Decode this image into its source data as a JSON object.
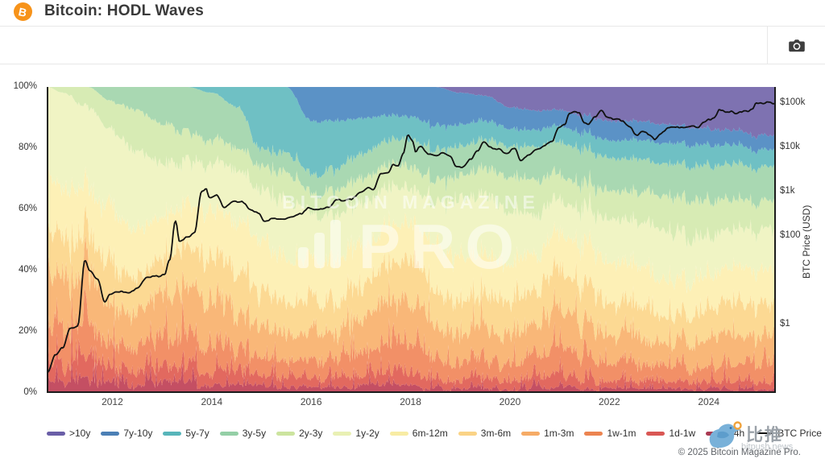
{
  "header": {
    "title": "Bitcoin: HODL Waves",
    "icon": "bitcoin-icon",
    "icon_glyph": "B"
  },
  "toolbar": {
    "buttons": [
      {
        "icon": "camera-icon"
      }
    ]
  },
  "watermark": {
    "line1": "BITCOIN MAGAZINE",
    "line2": "PRO"
  },
  "footer": {
    "copyright": "© 2025 Bitcoin Magazine Pro.",
    "bitpush_name": "比推",
    "bitpush_domain": "bitpush.news",
    "bitpush_icon": "twitter-bird-icon"
  },
  "chart_data": {
    "type": "area",
    "stacked": true,
    "title": "Bitcoin: HODL Waves",
    "grid": false,
    "legend_position": "bottom",
    "x_domain": [
      2010.68,
      2025.35
    ],
    "x_ticks": [
      "2012",
      "2014",
      "2016",
      "2018",
      "2020",
      "2022",
      "2024"
    ],
    "x_tick_values": [
      2012,
      2014,
      2016,
      2018,
      2020,
      2022,
      2024
    ],
    "percent_axis": {
      "ticks": [
        "100%",
        "80%",
        "60%",
        "40%",
        "20%",
        "0%"
      ],
      "values": [
        100,
        80,
        60,
        40,
        20,
        0
      ]
    },
    "price_axis": {
      "title": "BTC Price (USD)",
      "scale": "log",
      "domain": [
        0.0285,
        231000
      ],
      "ticks": [
        {
          "label": "$100k",
          "value": 100000
        },
        {
          "label": "$10k",
          "value": 10000
        },
        {
          "label": "$1k",
          "value": 1000
        },
        {
          "label": "$100",
          "value": 100
        },
        {
          "label": "$1",
          "value": 1
        }
      ]
    },
    "sample_years": [
      2010.7,
      2011.0,
      2011.5,
      2012.0,
      2012.5,
      2013.0,
      2013.5,
      2014.0,
      2014.5,
      2015.0,
      2015.5,
      2016.0,
      2016.5,
      2017.0,
      2017.5,
      2018.0,
      2018.5,
      2019.0,
      2019.5,
      2020.0,
      2020.5,
      2021.0,
      2021.5,
      2022.0,
      2022.5,
      2023.0,
      2023.5,
      2024.0,
      2024.5,
      2025.0,
      2025.35
    ],
    "bands": [
      {
        "name": "24h",
        "fill": "#c44f63",
        "swatch": "#a93a52",
        "values": [
          5,
          4,
          4,
          3,
          2.5,
          3.5,
          3.5,
          2.5,
          2,
          2,
          1.8,
          1.5,
          1.6,
          2,
          2.5,
          2,
          1.5,
          1.2,
          1.5,
          1.2,
          1.5,
          1.8,
          1.5,
          1.2,
          1.2,
          1,
          1,
          1.2,
          1.2,
          1.2,
          1
        ]
      },
      {
        "name": "1d-1w",
        "fill": "#e2695f",
        "swatch": "#d95754",
        "values": [
          7,
          6,
          6,
          4.5,
          4,
          4.5,
          5,
          4,
          3.5,
          3,
          2.8,
          2.5,
          2.6,
          3.2,
          4,
          4,
          3,
          2.6,
          3,
          2.5,
          3,
          3.6,
          3.2,
          2.6,
          2.5,
          2,
          2,
          2.4,
          2.5,
          2.5,
          2.3
        ]
      },
      {
        "name": "1w-1m",
        "fill": "#f29067",
        "swatch": "#ec8450",
        "values": [
          12,
          11,
          11,
          7.5,
          6.5,
          9,
          9.5,
          8.5,
          6.5,
          6,
          5.5,
          5.5,
          5.5,
          6.5,
          8,
          9,
          6.5,
          5.2,
          6,
          5,
          6.5,
          8,
          7,
          5.5,
          5,
          4.5,
          4.5,
          5,
          5.5,
          5.5,
          5.2
        ]
      },
      {
        "name": "1m-3m",
        "fill": "#f9b778",
        "swatch": "#f6ab66",
        "values": [
          16,
          15,
          15,
          12,
          11,
          13,
          14,
          14,
          11,
          10,
          9,
          10,
          9,
          10.5,
          12,
          14,
          10,
          9,
          9.5,
          8.5,
          10,
          12.5,
          11,
          9,
          8.5,
          7,
          7.5,
          8.5,
          9,
          8.5,
          8.5
        ]
      },
      {
        "name": "3m-6m",
        "fill": "#fcd993",
        "swatch": "#fad386",
        "values": [
          12,
          13,
          13,
          13,
          12,
          12,
          13,
          14,
          13,
          11,
          10,
          10.5,
          10,
          11,
          12,
          13,
          12,
          10.5,
          10,
          10,
          11,
          12,
          11.5,
          10.5,
          10,
          9,
          9,
          9.5,
          10,
          10,
          10
        ]
      },
      {
        "name": "6m-12m",
        "fill": "#fdf0b6",
        "swatch": "#f8eca4",
        "values": [
          18,
          17,
          16,
          18,
          16,
          14,
          14,
          16,
          17,
          16,
          14,
          13,
          13,
          13,
          13,
          13,
          15,
          15,
          13,
          12,
          12,
          12,
          12.5,
          13,
          13,
          12,
          11,
          10.5,
          11,
          11.5,
          11.5
        ]
      },
      {
        "name": "1y-2y",
        "fill": "#f0f4c4",
        "swatch": "#e9f0b4",
        "values": [
          30,
          32,
          28,
          27,
          26,
          18,
          15,
          15,
          18,
          17,
          19,
          14.5,
          15,
          14,
          13,
          11.5,
          13.5,
          18,
          20,
          17.5,
          13.5,
          11,
          12,
          13.7,
          14.3,
          16.5,
          15,
          13,
          12,
          12.5,
          13
        ]
      },
      {
        "name": "2y-3y",
        "fill": "#d7ebb4",
        "swatch": "#cce49f",
        "values": [
          0,
          2,
          7,
          10,
          14,
          13.5,
          10,
          8,
          8,
          8,
          9.4,
          6.5,
          8.5,
          8.5,
          8,
          7,
          7.5,
          8,
          9,
          12,
          11.5,
          8.6,
          8.3,
          9.5,
          10,
          11.5,
          12,
          11.9,
          10.3,
          9.3,
          9.5
        ]
      },
      {
        "name": "3y-5y",
        "fill": "#a9d8b2",
        "swatch": "#94cfa6",
        "values": [
          0,
          0,
          0,
          5,
          8,
          12.5,
          16,
          16,
          14,
          6,
          6.5,
          6.5,
          7.3,
          8.3,
          8.5,
          9,
          10,
          10,
          10,
          10.5,
          11,
          11.5,
          11.5,
          11,
          11,
          10.5,
          11.3,
          11.5,
          12,
          11.5,
          11.5
        ]
      },
      {
        "name": "5y-7y",
        "fill": "#6fc0c4",
        "swatch": "#57b5ba",
        "values": [
          0,
          0,
          0,
          0,
          0,
          0,
          0,
          2,
          7,
          21,
          22,
          18,
          16,
          12,
          9,
          7.5,
          8,
          7.5,
          6.5,
          6,
          5.5,
          5.5,
          5.5,
          6,
          6.5,
          7,
          7,
          7,
          6.5,
          6,
          5.7
        ]
      },
      {
        "name": "7y-10y",
        "fill": "#5b92c6",
        "swatch": "#4b7fb5",
        "values": [
          0,
          0,
          0,
          0,
          0,
          0,
          0,
          0,
          0,
          0,
          0,
          11.5,
          11.5,
          11,
          10,
          10,
          13,
          11,
          8.5,
          7.3,
          6.5,
          5.5,
          6,
          6.5,
          6.5,
          6.5,
          6.2,
          5.5,
          5,
          5,
          4.8
        ]
      },
      {
        "name": ">10y",
        "fill": "#7e72b1",
        "swatch": "#6a5ea7",
        "values": [
          0,
          0,
          0,
          0,
          0,
          0,
          0,
          0,
          0,
          0,
          0,
          0,
          0,
          0,
          0,
          0,
          0,
          2,
          3,
          7,
          8,
          8,
          10,
          11.5,
          11.5,
          12.5,
          13.5,
          14,
          15,
          16.5,
          17
        ]
      }
    ],
    "btc_price": {
      "name": "BTC Price",
      "color": "#111111",
      "points": [
        [
          2010.7,
          0.08
        ],
        [
          2010.85,
          0.2
        ],
        [
          2011.0,
          0.3
        ],
        [
          2011.15,
          0.8
        ],
        [
          2011.3,
          0.9
        ],
        [
          2011.45,
          29
        ],
        [
          2011.55,
          17
        ],
        [
          2011.7,
          11
        ],
        [
          2011.85,
          3
        ],
        [
          2011.95,
          4.6
        ],
        [
          2012.1,
          5.4
        ],
        [
          2012.3,
          5
        ],
        [
          2012.5,
          6.5
        ],
        [
          2012.7,
          11
        ],
        [
          2012.9,
          12.5
        ],
        [
          2013.05,
          14
        ],
        [
          2013.15,
          30
        ],
        [
          2013.27,
          230
        ],
        [
          2013.35,
          77
        ],
        [
          2013.5,
          95
        ],
        [
          2013.65,
          120
        ],
        [
          2013.8,
          1000
        ],
        [
          2013.88,
          1150
        ],
        [
          2013.95,
          730
        ],
        [
          2014.1,
          820
        ],
        [
          2014.25,
          450
        ],
        [
          2014.45,
          590
        ],
        [
          2014.6,
          580
        ],
        [
          2014.8,
          360
        ],
        [
          2014.95,
          320
        ],
        [
          2015.05,
          210
        ],
        [
          2015.25,
          245
        ],
        [
          2015.45,
          235
        ],
        [
          2015.6,
          260
        ],
        [
          2015.8,
          310
        ],
        [
          2015.95,
          430
        ],
        [
          2016.15,
          415
        ],
        [
          2016.35,
          450
        ],
        [
          2016.5,
          670
        ],
        [
          2016.65,
          610
        ],
        [
          2016.8,
          700
        ],
        [
          2017.0,
          980
        ],
        [
          2017.15,
          1180
        ],
        [
          2017.25,
          1050
        ],
        [
          2017.4,
          2400
        ],
        [
          2017.55,
          2700
        ],
        [
          2017.65,
          4300
        ],
        [
          2017.75,
          3900
        ],
        [
          2017.85,
          7500
        ],
        [
          2017.95,
          19000
        ],
        [
          2018.05,
          13500
        ],
        [
          2018.1,
          8200
        ],
        [
          2018.2,
          11000
        ],
        [
          2018.35,
          7000
        ],
        [
          2018.5,
          6400
        ],
        [
          2018.65,
          7300
        ],
        [
          2018.8,
          6300
        ],
        [
          2018.92,
          3900
        ],
        [
          2019.05,
          3600
        ],
        [
          2019.2,
          5300
        ],
        [
          2019.35,
          8500
        ],
        [
          2019.48,
          12800
        ],
        [
          2019.6,
          10300
        ],
        [
          2019.75,
          9500
        ],
        [
          2019.95,
          7200
        ],
        [
          2020.1,
          9500
        ],
        [
          2020.22,
          5300
        ],
        [
          2020.35,
          6800
        ],
        [
          2020.55,
          9400
        ],
        [
          2020.7,
          11500
        ],
        [
          2020.85,
          13800
        ],
        [
          2020.98,
          29000
        ],
        [
          2021.1,
          33000
        ],
        [
          2021.2,
          55000
        ],
        [
          2021.3,
          61000
        ],
        [
          2021.38,
          58000
        ],
        [
          2021.5,
          35000
        ],
        [
          2021.58,
          31500
        ],
        [
          2021.7,
          47000
        ],
        [
          2021.85,
          66000
        ],
        [
          2021.95,
          50000
        ],
        [
          2022.1,
          43000
        ],
        [
          2022.25,
          39500
        ],
        [
          2022.4,
          30000
        ],
        [
          2022.55,
          19000
        ],
        [
          2022.65,
          23000
        ],
        [
          2022.8,
          19500
        ],
        [
          2022.92,
          16200
        ],
        [
          2023.05,
          21000
        ],
        [
          2023.2,
          27500
        ],
        [
          2023.35,
          28500
        ],
        [
          2023.5,
          30200
        ],
        [
          2023.65,
          29500
        ],
        [
          2023.78,
          26500
        ],
        [
          2023.9,
          37000
        ],
        [
          2024.0,
          43500
        ],
        [
          2024.1,
          48000
        ],
        [
          2024.22,
          71000
        ],
        [
          2024.35,
          64000
        ],
        [
          2024.45,
          67000
        ],
        [
          2024.55,
          57500
        ],
        [
          2024.65,
          61000
        ],
        [
          2024.78,
          64000
        ],
        [
          2024.88,
          75000
        ],
        [
          2024.95,
          97000
        ],
        [
          2025.05,
          102000
        ],
        [
          2025.12,
          97000
        ],
        [
          2025.2,
          105000
        ],
        [
          2025.28,
          98000
        ],
        [
          2025.35,
          96000
        ]
      ]
    }
  }
}
